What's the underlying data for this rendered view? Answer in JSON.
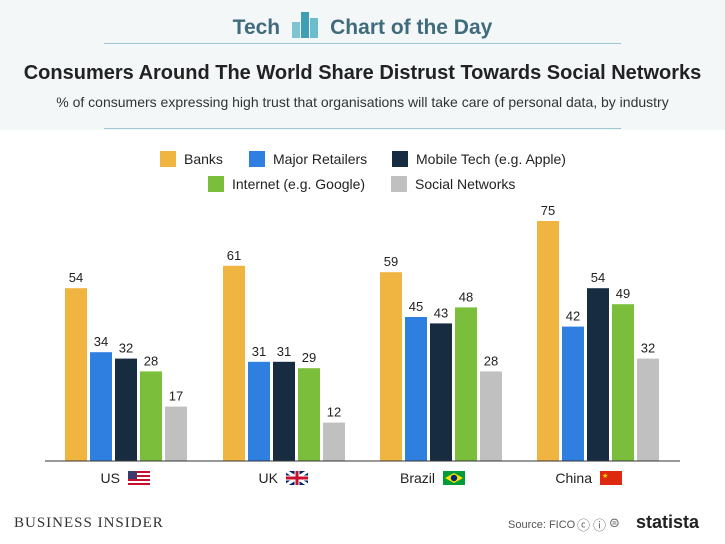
{
  "header": {
    "brand_left": "Tech",
    "brand_right": "Chart of the Day"
  },
  "chart_data": {
    "type": "bar",
    "title": "Consumers Around The World Share Distrust Towards Social Networks",
    "subtitle": "% of consumers expressing high trust that organisations will take care of personal data, by industry",
    "categories": [
      "US",
      "UK",
      "Brazil",
      "China"
    ],
    "series": [
      {
        "name": "Banks",
        "color": "#f0b541",
        "values": [
          54,
          61,
          59,
          75
        ]
      },
      {
        "name": "Major Retailers",
        "color": "#2f7fe0",
        "values": [
          34,
          31,
          45,
          42
        ]
      },
      {
        "name": "Mobile Tech (e.g. Apple)",
        "color": "#172c40",
        "values": [
          32,
          31,
          43,
          54
        ]
      },
      {
        "name": "Internet (e.g. Google)",
        "color": "#7bbe3b",
        "values": [
          28,
          29,
          48,
          49
        ]
      },
      {
        "name": "Social Networks",
        "color": "#c0c0c0",
        "values": [
          17,
          12,
          28,
          32
        ]
      }
    ],
    "flags": [
      "us-flag-icon",
      "uk-flag-icon",
      "brazil-flag-icon",
      "china-flag-icon"
    ],
    "ylim": [
      0,
      80
    ],
    "grid": false,
    "legend_position": "top"
  },
  "footer": {
    "publisher": "BUSINESS INSIDER",
    "source": "Source: FICO",
    "logo": "statista"
  }
}
